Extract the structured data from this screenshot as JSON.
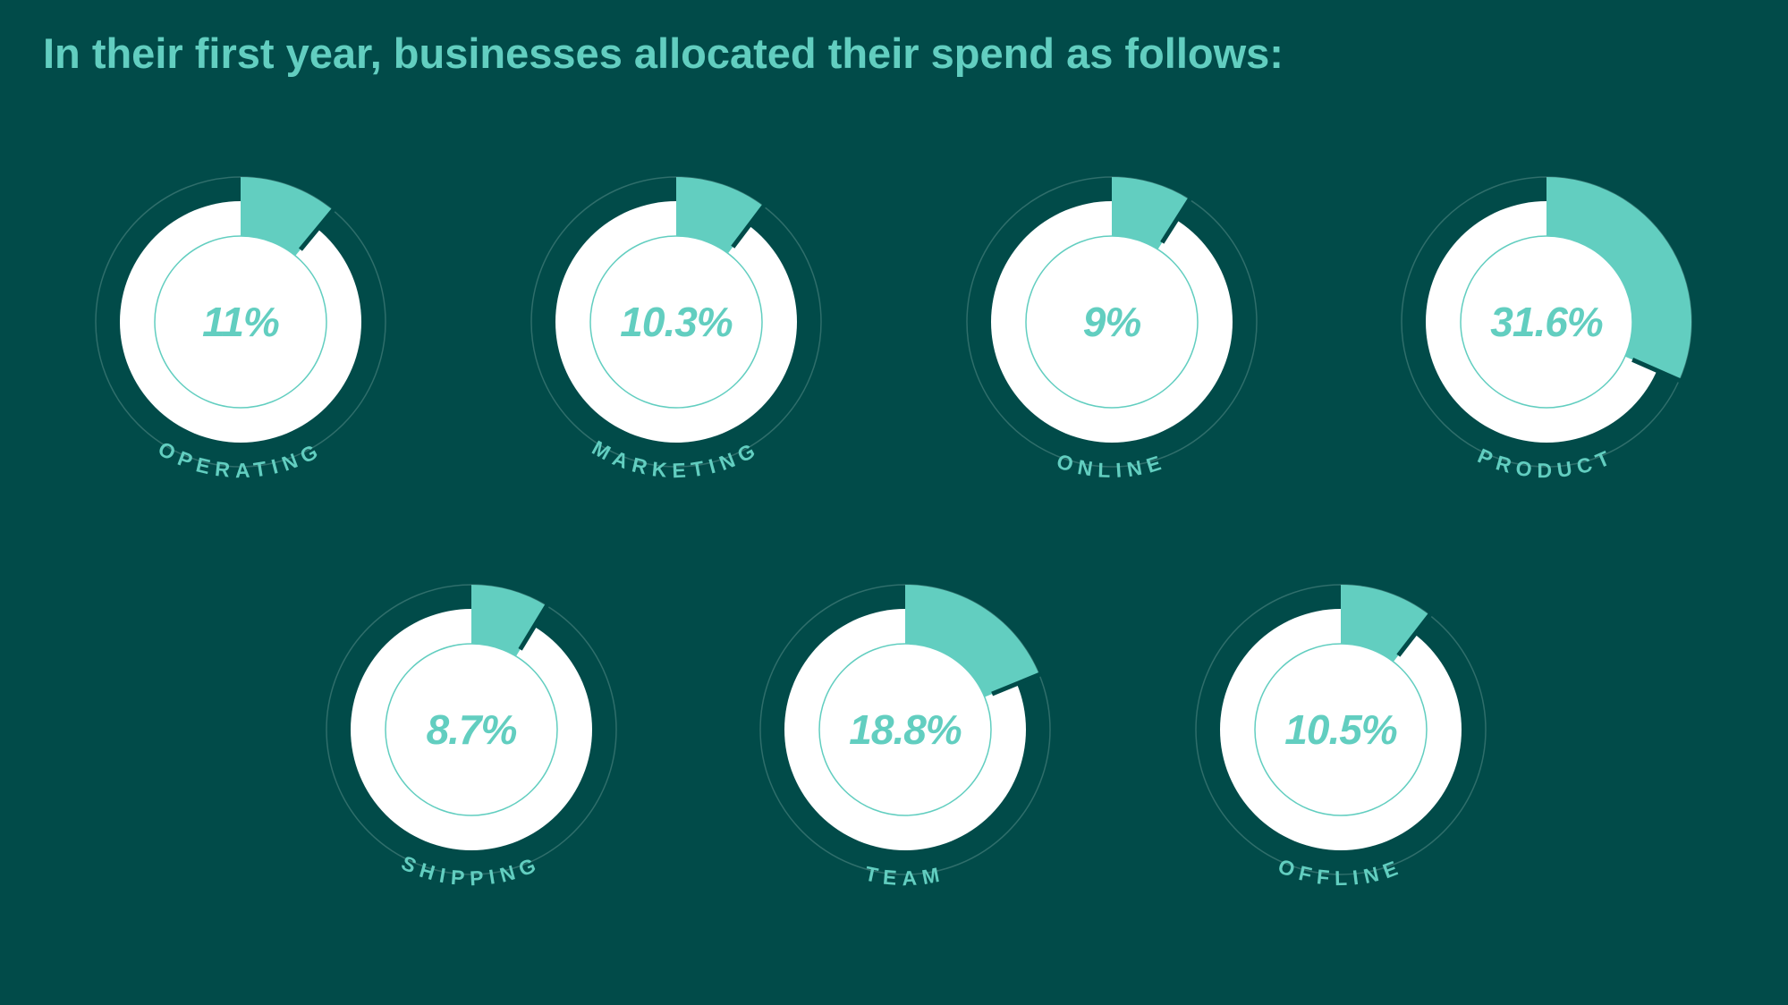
{
  "chart_data": {
    "type": "radial",
    "title": "In their first year, businesses allocated their spend as follows:",
    "categories": [
      "OPERATING",
      "MARKETING",
      "ONLINE",
      "PRODUCT",
      "SHIPPING",
      "TEAM",
      "OFFLINE"
    ],
    "values": [
      11,
      10.3,
      9,
      31.6,
      8.7,
      18.8,
      10.5
    ],
    "value_labels": [
      "11%",
      "10.3%",
      "9%",
      "31.6%",
      "8.7%",
      "18.8%",
      "10.5%"
    ],
    "color": "#62cec0"
  }
}
